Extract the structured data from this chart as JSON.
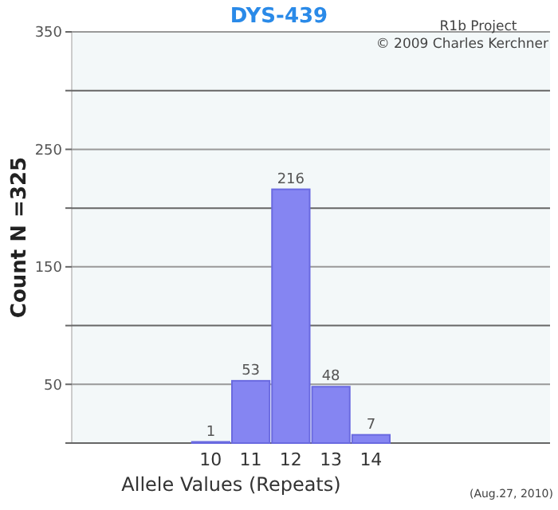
{
  "chart_data": {
    "type": "bar",
    "title": "DYS-439",
    "xlabel": "Allele Values (Repeats)",
    "ylabel": "Count N =325",
    "categories": [
      null,
      null,
      null,
      "10",
      "11",
      "12",
      "13",
      "14",
      null,
      null,
      null,
      null
    ],
    "values": [
      null,
      null,
      null,
      1,
      53,
      216,
      48,
      7,
      null,
      null,
      null,
      null
    ],
    "color": "#8585f2",
    "data_labels": true,
    "ylim": [
      0,
      350
    ],
    "yticks": [
      {
        "value": 0,
        "label": null
      },
      50,
      {
        "value": 100,
        "label": null
      },
      150,
      {
        "value": 200,
        "label": null
      },
      250,
      {
        "value": 300,
        "label": null
      },
      350
    ],
    "grid": "y",
    "annotations": [
      "R1b Project",
      "© 2009 Charles Kerchner",
      "(Aug.27, 2010)"
    ]
  }
}
